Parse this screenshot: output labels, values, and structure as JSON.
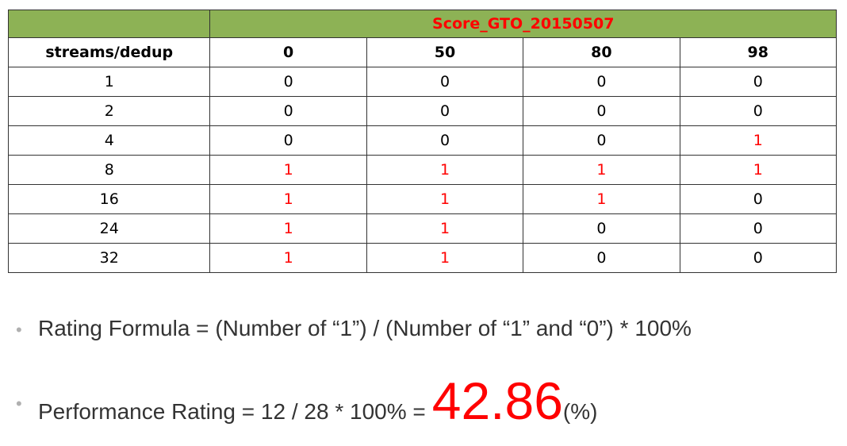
{
  "table": {
    "title": "Score_GTO_20150507",
    "corner_header": "streams/dedup",
    "columns": [
      "0",
      "50",
      "80",
      "98"
    ],
    "rows": [
      {
        "label": "1",
        "values": [
          "0",
          "0",
          "0",
          "0"
        ]
      },
      {
        "label": "2",
        "values": [
          "0",
          "0",
          "0",
          "0"
        ]
      },
      {
        "label": "4",
        "values": [
          "0",
          "0",
          "0",
          "1"
        ]
      },
      {
        "label": "8",
        "values": [
          "1",
          "1",
          "1",
          "1"
        ]
      },
      {
        "label": "16",
        "values": [
          "1",
          "1",
          "1",
          "0"
        ]
      },
      {
        "label": "24",
        "values": [
          "1",
          "1",
          "0",
          "0"
        ]
      },
      {
        "label": "32",
        "values": [
          "1",
          "1",
          "0",
          "0"
        ]
      }
    ]
  },
  "bullets": {
    "marker": "•",
    "rating_formula": "Rating Formula = (Number of “1”) / (Number of “1” and “0”) * 100%",
    "performance_prefix": "Performance Rating = 12 / 28 * 100% =",
    "performance_value": "42.86",
    "performance_unit": "(%)"
  },
  "colors": {
    "header_bg": "#8db255",
    "highlight": "#ff0000",
    "text": "#333333"
  }
}
